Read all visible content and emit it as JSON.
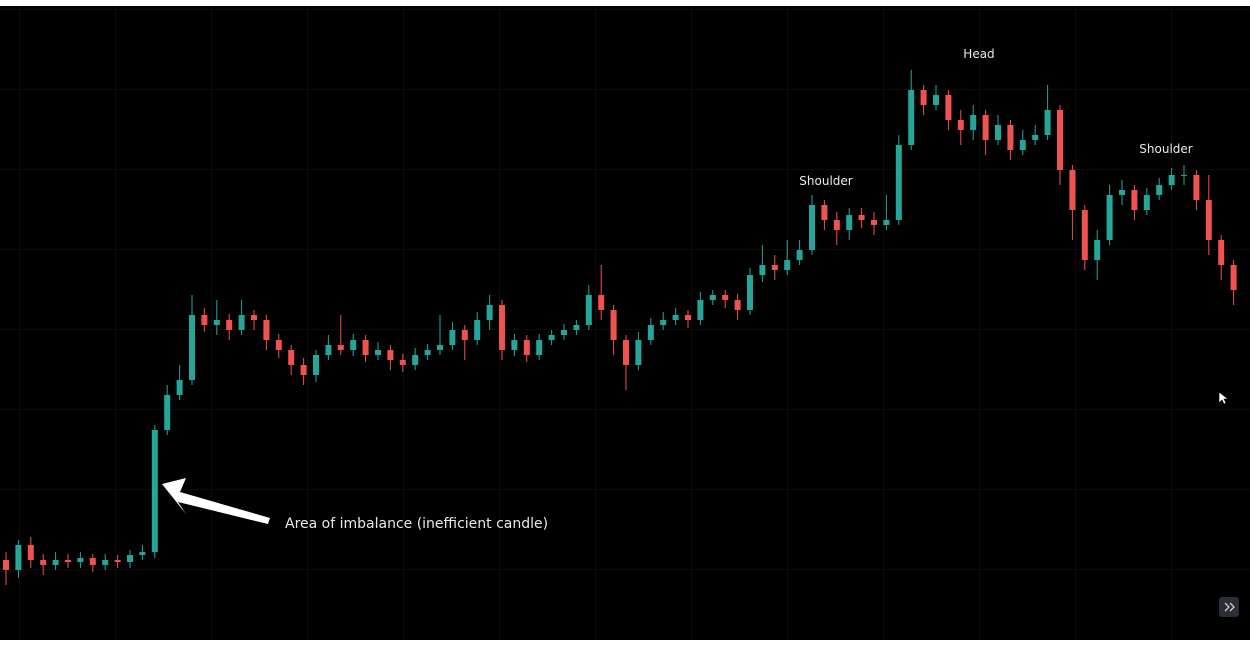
{
  "chart_data": {
    "type": "candlestick",
    "annotations": [
      "Head",
      "Shoulder",
      "Shoulder",
      "Area of imbalance (inefficient candle)"
    ],
    "ylim": [
      0,
      640
    ],
    "up_color": "#26a69a",
    "down_color": "#ef5350",
    "open": [
      80,
      70,
      95,
      80,
      75,
      80,
      78,
      82,
      75,
      80,
      78,
      85,
      88,
      210,
      245,
      260,
      325,
      315,
      320,
      310,
      325,
      320,
      300,
      290,
      275,
      265,
      285,
      295,
      290,
      300,
      285,
      290,
      280,
      275,
      285,
      290,
      295,
      310,
      300,
      320,
      335,
      290,
      300,
      285,
      300,
      305,
      310,
      315,
      345,
      330,
      300,
      275,
      300,
      315,
      320,
      325,
      320,
      340,
      345,
      340,
      330,
      365,
      375,
      370,
      380,
      390,
      435,
      420,
      410,
      425,
      420,
      415,
      420,
      495,
      550,
      535,
      545,
      520,
      510,
      525,
      500,
      515,
      490,
      500,
      505,
      530,
      470,
      430,
      380,
      400,
      445,
      450,
      430,
      445,
      455,
      465,
      465,
      440,
      400,
      375
    ],
    "high": [
      88,
      100,
      103,
      86,
      88,
      86,
      88,
      86,
      86,
      85,
      90,
      95,
      215,
      255,
      275,
      345,
      332,
      340,
      326,
      340,
      330,
      325,
      306,
      295,
      282,
      290,
      305,
      325,
      306,
      305,
      298,
      295,
      286,
      292,
      296,
      325,
      318,
      315,
      328,
      345,
      340,
      306,
      305,
      306,
      310,
      316,
      320,
      355,
      375,
      335,
      305,
      308,
      322,
      328,
      332,
      330,
      348,
      350,
      350,
      346,
      372,
      395,
      385,
      400,
      400,
      445,
      440,
      428,
      432,
      432,
      428,
      445,
      505,
      570,
      555,
      555,
      550,
      530,
      535,
      530,
      525,
      520,
      510,
      515,
      555,
      535,
      475,
      435,
      410,
      455,
      460,
      455,
      452,
      462,
      472,
      475,
      470,
      465,
      405,
      380
    ],
    "low": [
      55,
      62,
      72,
      65,
      70,
      72,
      72,
      68,
      70,
      72,
      72,
      80,
      82,
      205,
      240,
      255,
      308,
      305,
      300,
      305,
      310,
      290,
      282,
      265,
      255,
      258,
      280,
      285,
      284,
      278,
      280,
      270,
      268,
      270,
      280,
      285,
      290,
      280,
      295,
      310,
      280,
      284,
      278,
      280,
      295,
      300,
      305,
      310,
      320,
      285,
      250,
      270,
      295,
      310,
      315,
      312,
      315,
      335,
      332,
      320,
      325,
      358,
      360,
      365,
      375,
      385,
      410,
      395,
      400,
      412,
      405,
      410,
      415,
      490,
      525,
      530,
      510,
      495,
      500,
      485,
      495,
      480,
      485,
      495,
      500,
      455,
      400,
      370,
      360,
      395,
      435,
      420,
      425,
      440,
      450,
      455,
      430,
      385,
      360,
      335
    ],
    "close": [
      70,
      95,
      80,
      75,
      80,
      78,
      82,
      75,
      80,
      78,
      85,
      88,
      210,
      245,
      260,
      325,
      315,
      320,
      310,
      325,
      320,
      300,
      290,
      275,
      265,
      285,
      295,
      290,
      300,
      285,
      290,
      280,
      275,
      285,
      290,
      295,
      310,
      300,
      320,
      335,
      290,
      300,
      285,
      300,
      305,
      310,
      315,
      345,
      330,
      300,
      275,
      300,
      315,
      320,
      325,
      320,
      340,
      345,
      340,
      330,
      365,
      375,
      370,
      380,
      390,
      435,
      420,
      410,
      425,
      420,
      415,
      420,
      495,
      550,
      535,
      545,
      520,
      510,
      525,
      500,
      515,
      490,
      500,
      505,
      530,
      470,
      430,
      380,
      400,
      445,
      450,
      430,
      445,
      455,
      465,
      465,
      440,
      400,
      375,
      350
    ]
  }
}
